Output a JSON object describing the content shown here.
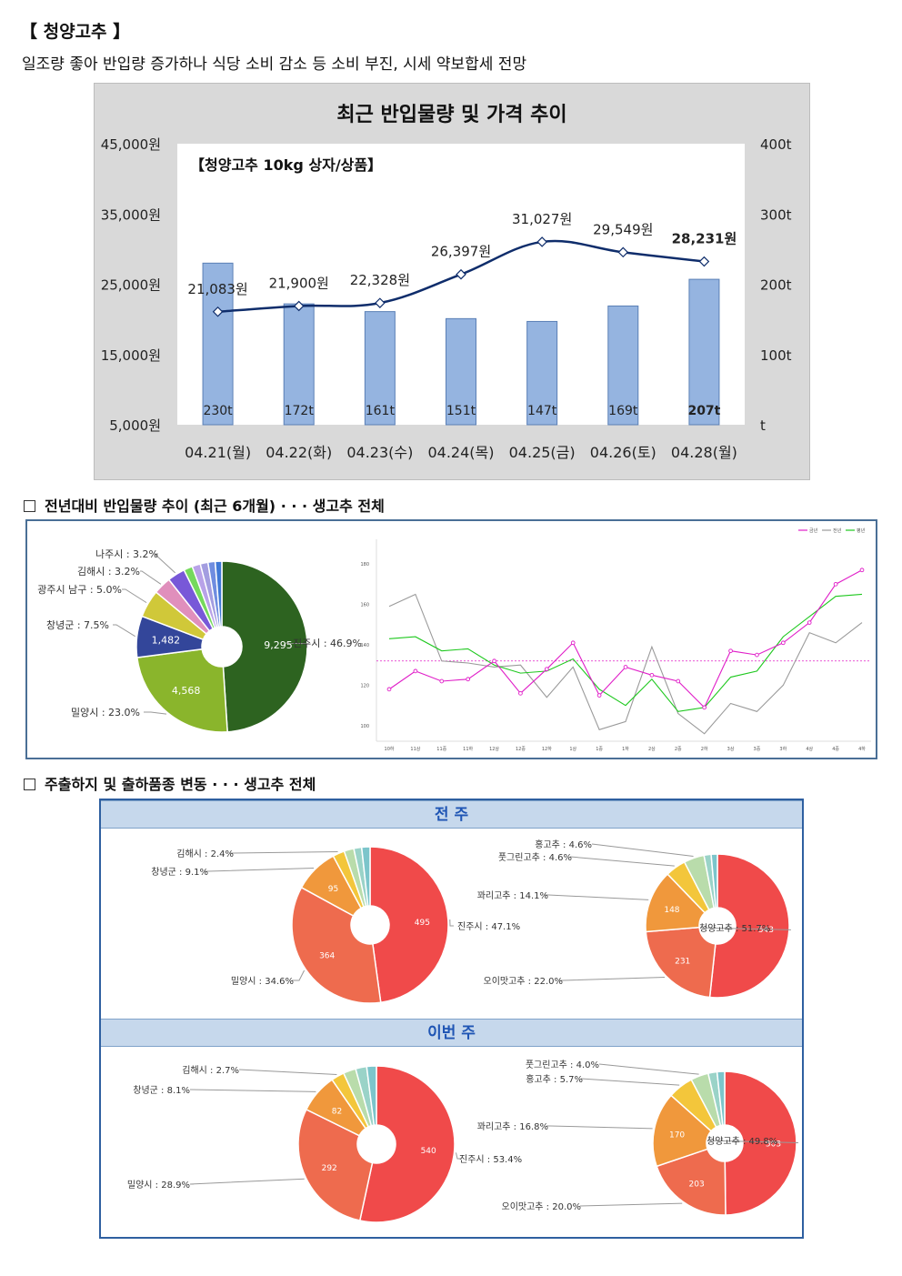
{
  "header": {
    "title": "【 청양고추 】",
    "subtitle": "일조량 좋아 반입량 증가하나 식당 소비 감소 등 소비 부진, 시세 약보합세 전망"
  },
  "chart_data": [
    {
      "type": "bar",
      "title": "최근 반입물량 및 가격 추이",
      "annotation": "【청양고추 10kg 상자/상품】",
      "categories": [
        "04.21(월)",
        "04.22(화)",
        "04.23(수)",
        "04.24(목)",
        "04.25(금)",
        "04.26(토)",
        "04.28(월)"
      ],
      "series": [
        {
          "kind": "bar",
          "axis": "right",
          "values": [
            230,
            172,
            161,
            151,
            147,
            169,
            207
          ],
          "labels": [
            "230t",
            "172t",
            "161t",
            "151t",
            "147t",
            "169t",
            "207t"
          ]
        },
        {
          "kind": "line",
          "axis": "left",
          "values": [
            21083,
            21900,
            22328,
            26397,
            31027,
            29549,
            28231
          ],
          "labels": [
            "21,083원",
            "21,900원",
            "22,328원",
            "26,397원",
            "31,027원",
            "29,549원",
            "28,231원"
          ]
        }
      ],
      "left_axis": {
        "ylim": [
          5000,
          45000
        ],
        "ticks": [
          "5,000원",
          "15,000원",
          "25,000원",
          "35,000원",
          "45,000원"
        ]
      },
      "right_axis": {
        "ylim": [
          0,
          400
        ],
        "ticks": [
          "t",
          "100t",
          "200t",
          "300t",
          "400t"
        ]
      },
      "colors": {
        "bar": "#95b4e0",
        "bar_border": "#5a7fb5",
        "line": "#0f2d6b"
      }
    },
    {
      "type": "pie",
      "section": "전년대비 반입물량 추이 (최근 6개월) · · · 생고추 전체",
      "slices": [
        {
          "label": "진주시 : 46.9%",
          "value": 46.9,
          "inner": "9,295",
          "color": "#2d6320"
        },
        {
          "label": "밀양시 : 23.0%",
          "value": 23.0,
          "inner": "4,568",
          "color": "#8ab52c"
        },
        {
          "label": "창녕군 : 7.5%",
          "value": 7.5,
          "inner": "1,482",
          "color": "#33469a"
        },
        {
          "label": "광주시 남구 : 5.0%",
          "value": 5.0,
          "inner": "",
          "color": "#d0c839"
        },
        {
          "label": "김해시 : 3.2%",
          "value": 3.2,
          "inner": "",
          "color": "#e08fbc"
        },
        {
          "label": "나주시 : 3.2%",
          "value": 3.2,
          "inner": "",
          "color": "#7858d8"
        },
        {
          "label": "",
          "value": 1.6,
          "inner": "",
          "color": "#75d95c"
        },
        {
          "label": "",
          "value": 1.5,
          "inner": "",
          "color": "#b8a2e8"
        },
        {
          "label": "",
          "value": 1.4,
          "inner": "",
          "color": "#a39de0"
        },
        {
          "label": "",
          "value": 1.3,
          "inner": "",
          "color": "#6f8de0"
        },
        {
          "label": "",
          "value": 1.2,
          "inner": "",
          "color": "#3f78d6"
        }
      ]
    },
    {
      "type": "line",
      "legend": [
        "금년",
        "전년",
        "평년"
      ],
      "legend_position": "top-right",
      "categories": [
        "10하",
        "11상",
        "11중",
        "11하",
        "12상",
        "12중",
        "12하",
        "1상",
        "1중",
        "1하",
        "2상",
        "2중",
        "2하",
        "3상",
        "3중",
        "3하",
        "4상",
        "4중",
        "4하"
      ],
      "series": [
        {
          "name": "금년",
          "color": "#e01ec8",
          "values": [
            118,
            127,
            122,
            123,
            132,
            116,
            128,
            141,
            115,
            129,
            125,
            122,
            109,
            137,
            135,
            141,
            151,
            170,
            177
          ]
        },
        {
          "name": "전년",
          "color": "#9a9a9a",
          "values": [
            159,
            165,
            132,
            131,
            129,
            130,
            114,
            129,
            98,
            102,
            139,
            106,
            96,
            111,
            107,
            120,
            146,
            141,
            151
          ]
        },
        {
          "name": "평년",
          "color": "#1ec81e",
          "values": [
            143,
            144,
            137,
            138,
            130,
            126,
            127,
            133,
            118,
            110,
            123,
            107,
            109,
            124,
            127,
            144,
            154,
            164,
            165
          ]
        }
      ],
      "reference_value": 132,
      "ylim": [
        95,
        185
      ],
      "yticks": [
        "100",
        "120",
        "140",
        "160",
        "180"
      ],
      "grid": false
    },
    {
      "type": "pie",
      "section": "주출하지 및 출하품종 변동 · · · 생고추 전체",
      "group": "전 주",
      "slices": [
        {
          "label": "진주시 : 47.1%",
          "value": 47.1,
          "inner": "495",
          "color": "#f04a4a"
        },
        {
          "label": "밀양시 : 34.6%",
          "value": 34.6,
          "inner": "364",
          "color": "#ee6b4e"
        },
        {
          "label": "창녕군 : 9.1%",
          "value": 9.1,
          "inner": "95",
          "color": "#f0983c"
        },
        {
          "label": "김해시 : 2.4%",
          "value": 2.4,
          "inner": "",
          "color": "#f3c63b"
        },
        {
          "label": "",
          "value": 2.0,
          "inner": "",
          "color": "#b9dcab"
        },
        {
          "label": "",
          "value": 1.6,
          "inner": "",
          "color": "#9ad3c8"
        },
        {
          "label": "",
          "value": 1.7,
          "inner": "",
          "color": "#7cc5cb"
        }
      ]
    },
    {
      "type": "pie",
      "group": "전 주",
      "slices": [
        {
          "label": "청양고추 : 51.7%",
          "value": 51.7,
          "inner": "543",
          "color": "#f04a4a"
        },
        {
          "label": "오이맛고추 : 22.0%",
          "value": 22.0,
          "inner": "231",
          "color": "#ee6b4e"
        },
        {
          "label": "꽈리고추 : 14.1%",
          "value": 14.1,
          "inner": "148",
          "color": "#f0983c"
        },
        {
          "label": "풋그린고추 : 4.6%",
          "value": 4.6,
          "inner": "",
          "color": "#f3c63b"
        },
        {
          "label": "홍고추 : 4.6%",
          "value": 4.6,
          "inner": "",
          "color": "#b9dcab"
        },
        {
          "label": "",
          "value": 1.6,
          "inner": "",
          "color": "#9ad3c8"
        },
        {
          "label": "",
          "value": 1.4,
          "inner": "",
          "color": "#7cc5cb"
        }
      ]
    },
    {
      "type": "pie",
      "group": "이번 주",
      "slices": [
        {
          "label": "진주시 : 53.4%",
          "value": 53.4,
          "inner": "540",
          "color": "#f04a4a"
        },
        {
          "label": "밀양시 : 28.9%",
          "value": 28.9,
          "inner": "292",
          "color": "#ee6b4e"
        },
        {
          "label": "창녕군 : 8.1%",
          "value": 8.1,
          "inner": "82",
          "color": "#f0983c"
        },
        {
          "label": "김해시 : 2.7%",
          "value": 2.7,
          "inner": "",
          "color": "#f3c63b"
        },
        {
          "label": "",
          "value": 2.6,
          "inner": "",
          "color": "#b9dcab"
        },
        {
          "label": "",
          "value": 2.3,
          "inner": "",
          "color": "#9ad3c8"
        },
        {
          "label": "",
          "value": 2.0,
          "inner": "",
          "color": "#7cc5cb"
        }
      ]
    },
    {
      "type": "pie",
      "group": "이번 주",
      "slices": [
        {
          "label": "청양고추 : 49.8%",
          "value": 49.8,
          "inner": "503",
          "color": "#f04a4a"
        },
        {
          "label": "오이맛고추 : 20.0%",
          "value": 20.0,
          "inner": "203",
          "color": "#ee6b4e"
        },
        {
          "label": "꽈리고추 : 16.8%",
          "value": 16.8,
          "inner": "170",
          "color": "#f0983c"
        },
        {
          "label": "홍고추 : 5.7%",
          "value": 5.7,
          "inner": "",
          "color": "#f3c63b"
        },
        {
          "label": "풋그린고추 : 4.0%",
          "value": 4.0,
          "inner": "",
          "color": "#b9dcab"
        },
        {
          "label": "",
          "value": 2.0,
          "inner": "",
          "color": "#9ad3c8"
        },
        {
          "label": "",
          "value": 1.7,
          "inner": "",
          "color": "#7cc5cb"
        }
      ]
    }
  ],
  "sections": {
    "s1": "전년대비 반입물량 추이 (최근 6개월) · · · 생고추 전체",
    "s2": "주출하지 및 출하품종 변동 · · · 생고추 전체",
    "band_prev": "전 주",
    "band_this": "이번 주"
  }
}
